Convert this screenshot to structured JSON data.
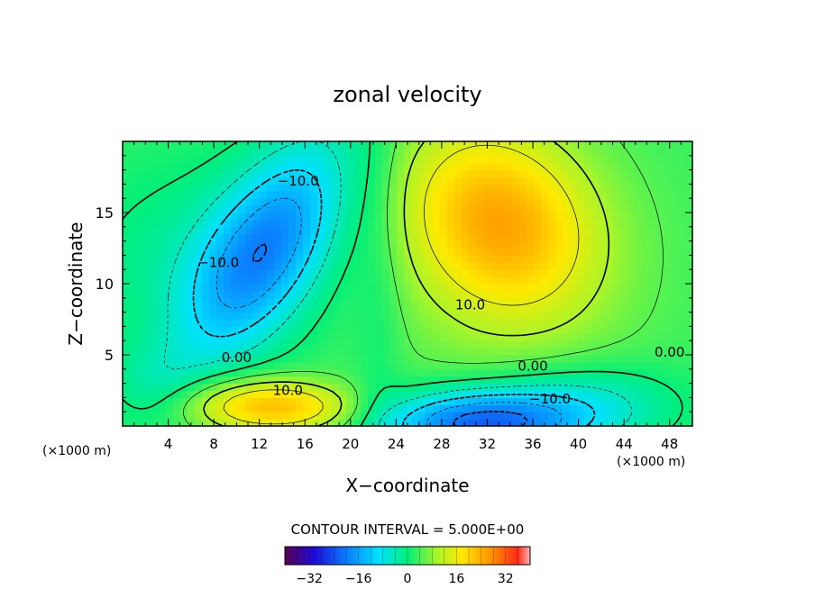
{
  "chart_data": {
    "type": "heatmap",
    "title": "zonal velocity",
    "xlabel": "X−coordinate",
    "ylabel": "Z−coordinate",
    "x_unit_left": "(×1000 m)",
    "x_unit_right": "(×1000 m)",
    "xlim": [
      0,
      50
    ],
    "ylim": [
      0,
      20
    ],
    "xticks": [
      4,
      8,
      12,
      16,
      20,
      24,
      28,
      32,
      36,
      40,
      44,
      48
    ],
    "yticks": [
      5,
      10,
      15
    ],
    "contour_interval_text": "CONTOUR INTERVAL = 5.000E+00",
    "colorbar": {
      "min": -40,
      "max": 40,
      "ticks": [
        -32,
        -16,
        0,
        16,
        32
      ]
    },
    "contour_labels": [
      {
        "text": "−10.0",
        "x": 15.4,
        "y": 17.2
      },
      {
        "text": "−10.0",
        "x": 8.4,
        "y": 11.5
      },
      {
        "text": "0.00",
        "x": 10.0,
        "y": 4.8
      },
      {
        "text": "10.0",
        "x": 14.5,
        "y": 2.5
      },
      {
        "text": "10.0",
        "x": 30.5,
        "y": 8.5
      },
      {
        "text": "0.00",
        "x": 36.0,
        "y": 4.2
      },
      {
        "text": "−10.0",
        "x": 37.5,
        "y": 1.9
      },
      {
        "text": "0.00",
        "x": 48.0,
        "y": 5.2
      }
    ],
    "data_features": [
      {
        "name": "upper-left jet minimum",
        "x": 12.0,
        "y": 12.5,
        "value": -18
      },
      {
        "name": "upper-right jet maximum",
        "x": 34.0,
        "y": 15.0,
        "value": 18
      },
      {
        "name": "lower-left maximum",
        "x": 10.0,
        "y": 1.5,
        "value": 16
      },
      {
        "name": "lower-center minimum",
        "x": 31.0,
        "y": 0.2,
        "value": -22
      }
    ]
  }
}
